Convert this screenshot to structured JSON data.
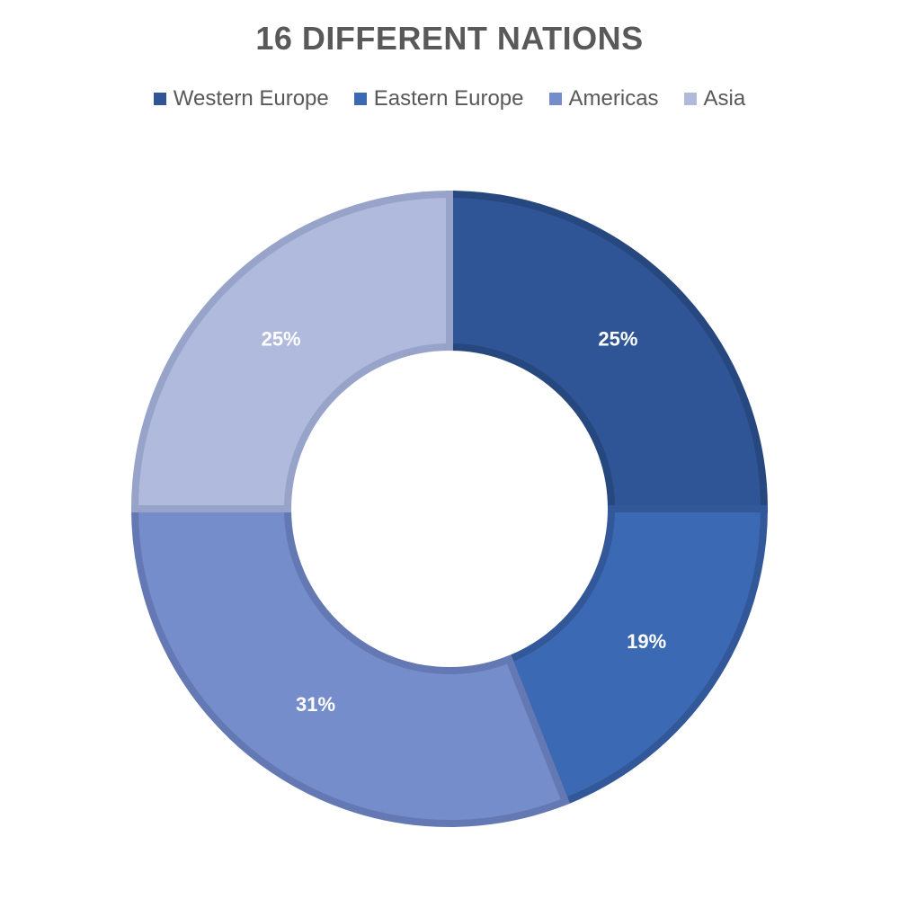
{
  "chart_data": {
    "type": "pie",
    "title": "16 DIFFERENT NATIONS",
    "legend_position": "top",
    "donut": true,
    "categories": [
      "Western Europe",
      "Eastern Europe",
      "Americas",
      "Asia"
    ],
    "values": [
      25,
      19,
      31,
      25
    ],
    "data_labels": [
      "25%",
      "19%",
      "31%",
      "25%"
    ],
    "colors": [
      "#2F5597",
      "#3C69B3",
      "#768DCB",
      "#AFBADC"
    ],
    "edge_colors": [
      "#27477F",
      "#32589A",
      "#6479B3",
      "#97A3C9"
    ]
  }
}
